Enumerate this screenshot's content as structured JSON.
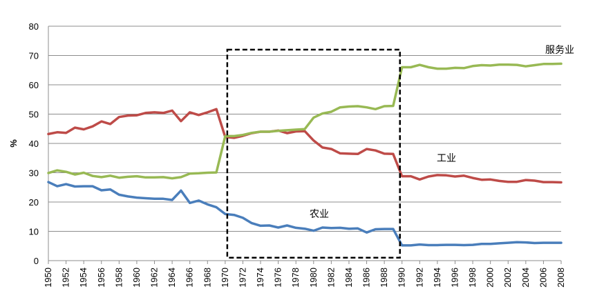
{
  "chart_data": {
    "type": "line",
    "ylabel": "%",
    "ylim": [
      0,
      80
    ],
    "y_ticks": [
      0,
      10,
      20,
      30,
      40,
      50,
      60,
      70,
      80
    ],
    "x_ticks": [
      1950,
      1952,
      1954,
      1956,
      1958,
      1960,
      1962,
      1964,
      1966,
      1968,
      1970,
      1972,
      1974,
      1976,
      1978,
      1980,
      1982,
      1984,
      1986,
      1988,
      1990,
      1992,
      1994,
      1996,
      1998,
      2000,
      2002,
      2004,
      2006,
      2008
    ],
    "xlim": [
      1950,
      2008
    ],
    "grid": true,
    "highlight_range": {
      "x": [
        1970,
        1990
      ],
      "y": [
        1,
        72
      ]
    },
    "x": [
      1950,
      1951,
      1952,
      1953,
      1954,
      1955,
      1956,
      1957,
      1958,
      1959,
      1960,
      1961,
      1962,
      1963,
      1964,
      1965,
      1966,
      1967,
      1968,
      1969,
      1970,
      1971,
      1972,
      1973,
      1974,
      1975,
      1976,
      1977,
      1978,
      1979,
      1980,
      1981,
      1982,
      1983,
      1984,
      1985,
      1986,
      1987,
      1988,
      1989,
      1990,
      1991,
      1992,
      1993,
      1994,
      1995,
      1996,
      1997,
      1998,
      1999,
      2000,
      2001,
      2002,
      2003,
      2004,
      2005,
      2006,
      2007,
      2008
    ],
    "series": [
      {
        "name": "农业",
        "color": "#4a7ebb",
        "values": [
          26.8,
          25.4,
          26.1,
          25.3,
          25.4,
          25.4,
          24.0,
          24.3,
          22.5,
          21.9,
          21.5,
          21.3,
          21.1,
          21.1,
          20.7,
          23.9,
          19.7,
          20.5,
          19.2,
          18.2,
          15.9,
          15.6,
          14.6,
          12.8,
          11.9,
          12.0,
          11.3,
          12.0,
          11.2,
          10.9,
          10.2,
          11.3,
          11.1,
          11.2,
          10.9,
          11.0,
          9.6,
          10.7,
          10.8,
          10.8,
          5.2,
          5.2,
          5.5,
          5.3,
          5.3,
          5.4,
          5.4,
          5.3,
          5.4,
          5.7,
          5.7,
          5.9,
          6.1,
          6.3,
          6.2,
          6.0,
          6.1,
          6.1,
          6.1
        ]
      },
      {
        "name": "工业",
        "color": "#be4b48",
        "values": [
          43.2,
          43.8,
          43.6,
          45.4,
          44.8,
          45.8,
          47.5,
          46.6,
          49.0,
          49.5,
          49.6,
          50.4,
          50.6,
          50.4,
          51.2,
          47.6,
          50.6,
          49.7,
          50.6,
          51.7,
          42.2,
          41.9,
          42.6,
          43.5,
          44.0,
          44.0,
          44.4,
          43.5,
          44.1,
          44.2,
          41.0,
          38.6,
          38.1,
          36.6,
          36.5,
          36.4,
          38.1,
          37.6,
          36.5,
          36.4,
          28.8,
          28.8,
          27.7,
          28.7,
          29.2,
          29.1,
          28.7,
          29.0,
          28.2,
          27.6,
          27.7,
          27.2,
          26.9,
          26.9,
          27.5,
          27.3,
          26.8,
          26.8,
          26.7
        ]
      },
      {
        "name": "服务业",
        "color": "#98b954",
        "values": [
          29.9,
          30.8,
          30.3,
          29.4,
          30.0,
          28.9,
          28.5,
          29.0,
          28.3,
          28.6,
          28.8,
          28.4,
          28.4,
          28.5,
          28.1,
          28.5,
          29.7,
          29.8,
          30.0,
          30.1,
          42.5,
          42.5,
          42.9,
          43.6,
          44.0,
          44.0,
          44.3,
          44.5,
          44.7,
          44.9,
          48.8,
          50.2,
          50.8,
          52.3,
          52.6,
          52.7,
          52.3,
          51.7,
          52.7,
          52.8,
          66.0,
          66.0,
          66.8,
          66.0,
          65.5,
          65.5,
          65.8,
          65.7,
          66.4,
          66.7,
          66.6,
          66.9,
          66.9,
          66.8,
          66.3,
          66.7,
          67.1,
          67.1,
          67.2
        ]
      }
    ],
    "annotations": [
      {
        "text": "服务业",
        "series": "服务业"
      },
      {
        "text": "工业",
        "series": "工业"
      },
      {
        "text": "农业",
        "series": "农业"
      }
    ]
  }
}
